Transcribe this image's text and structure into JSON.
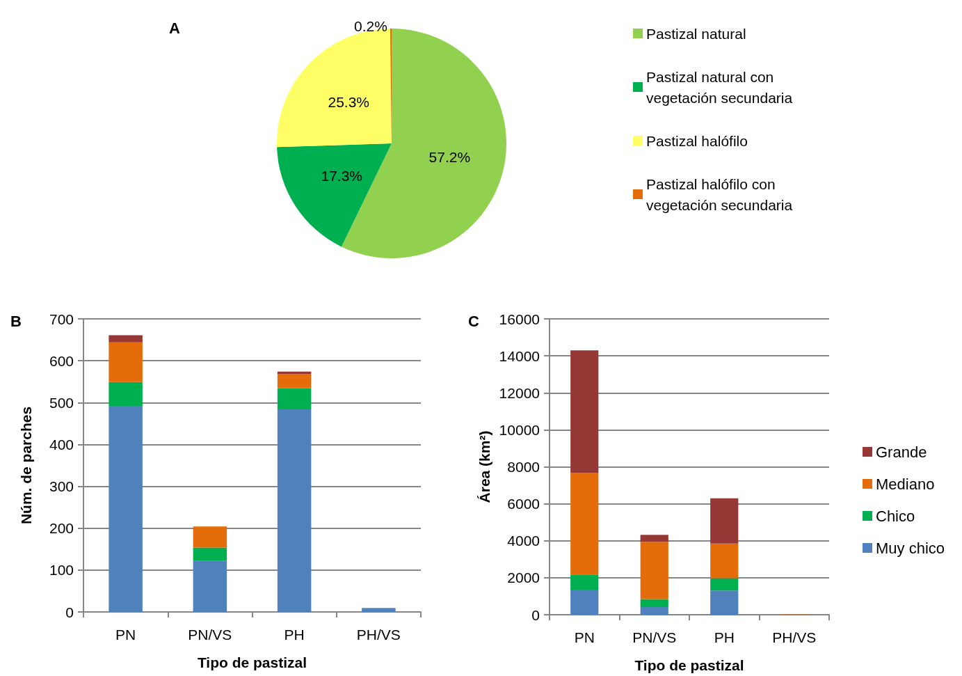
{
  "chart_data": [
    {
      "type": "pie",
      "title": "A",
      "categories": [
        "Pastizal natural",
        "Pastizal natural con vegetación secundaria",
        "Pastizal halófilo",
        "Pastizal halófilo con vegetación secundaria"
      ],
      "values": [
        57.2,
        17.3,
        25.3,
        0.2
      ],
      "value_labels": [
        "57.2%",
        "17.3%",
        "25.3%",
        "0.2%"
      ],
      "colors": [
        "#92d050",
        "#00b050",
        "#ffff66",
        "#e36c09"
      ],
      "legend": "right"
    },
    {
      "type": "bar",
      "title": "B",
      "stacked": true,
      "categories": [
        "PN",
        "PN/VS",
        "PH",
        "PH/VS"
      ],
      "xlabel": "Tipo de pastizal",
      "ylabel": "Núm. de parches",
      "ylim": [
        0,
        700
      ],
      "yticks": [
        0,
        100,
        200,
        300,
        400,
        500,
        600,
        700
      ],
      "grid": "y",
      "legend": false,
      "series": [
        {
          "color": "#4f81bd",
          "values": [
            492,
            122,
            484,
            9
          ]
        },
        {
          "color": "#00b050",
          "values": [
            57,
            32,
            50,
            0
          ]
        },
        {
          "color": "#e46c0a",
          "values": [
            95,
            50,
            34,
            1
          ]
        },
        {
          "color": "#953735",
          "values": [
            17,
            0,
            6,
            0
          ]
        }
      ]
    },
    {
      "type": "bar",
      "title": "C",
      "stacked": true,
      "categories": [
        "PN",
        "PN/VS",
        "PH",
        "PH/VS"
      ],
      "xlabel": "Tipo de pastizal",
      "ylabel": "Área (km²)",
      "ylim": [
        0,
        16000
      ],
      "yticks": [
        0,
        2000,
        4000,
        6000,
        8000,
        10000,
        12000,
        14000,
        16000
      ],
      "grid": "y",
      "legend": "right",
      "series": [
        {
          "name": "Muy chico",
          "color": "#4f81bd",
          "values": [
            1360,
            410,
            1310,
            10
          ]
        },
        {
          "name": "Chico",
          "color": "#00b050",
          "values": [
            810,
            440,
            670,
            0
          ]
        },
        {
          "name": "Mediano",
          "color": "#e46c0a",
          "values": [
            5490,
            3090,
            1870,
            20
          ]
        },
        {
          "name": "Grande",
          "color": "#953735",
          "values": [
            6640,
            380,
            2450,
            0
          ]
        }
      ]
    }
  ]
}
